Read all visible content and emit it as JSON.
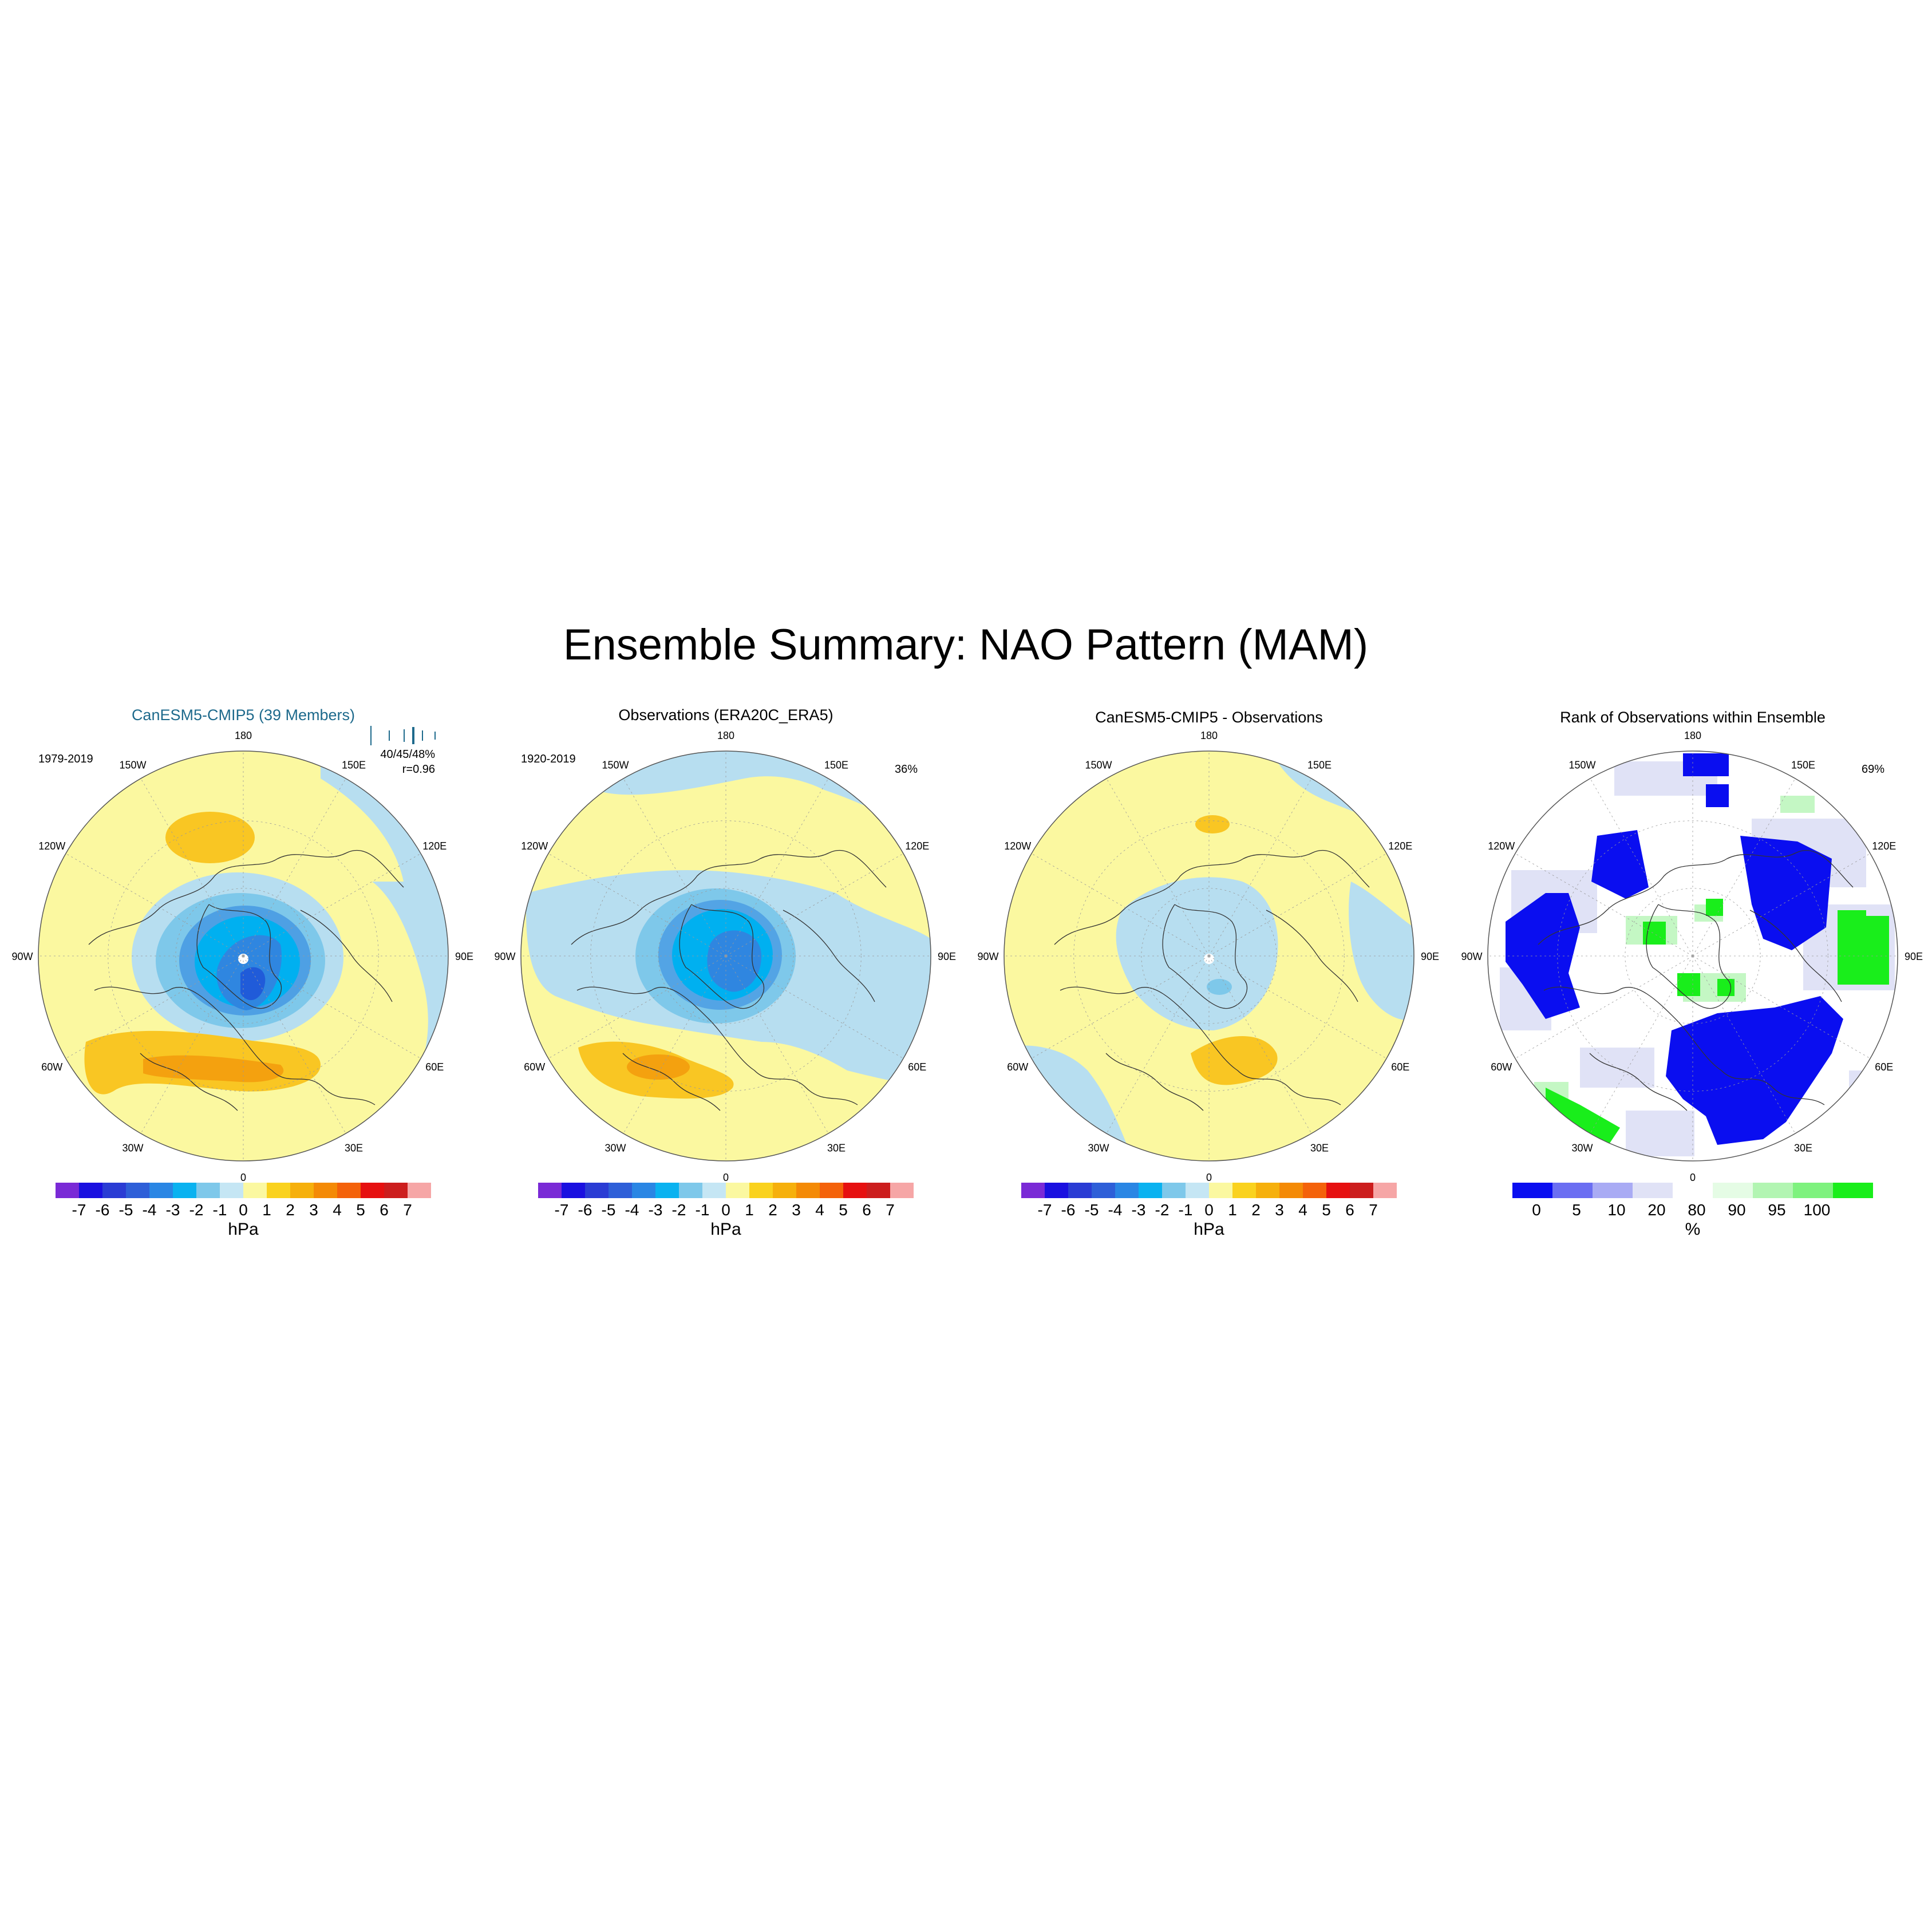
{
  "title": "Ensemble Summary: NAO Pattern (MAM)",
  "colors": {
    "dark_blue": "#1a49d6",
    "blue": "#2f86e0",
    "mid_blue": "#00b0f0",
    "light_blue": "#b7def0",
    "yellow": "#fbf8a0",
    "orange1": "#f9c623",
    "orange2": "#f4a10f",
    "coast": "#333333",
    "grid": "#9a9a9a",
    "model_title": "#1e6a8c",
    "rank_blue": "#0a0ef0",
    "rank_lav": "#e0e2f6",
    "rank_green": "#19ee1b",
    "rank_lgreen": "#c4f7c4"
  },
  "common": {
    "lon_labels": [
      "180",
      "150E",
      "120E",
      "90E",
      "60E",
      "30E",
      "0",
      "30W",
      "60W",
      "90W",
      "120W",
      "150W"
    ]
  },
  "panels": [
    {
      "title": "CanESM5-CMIP5 (39 Members)",
      "period": "1979-2019",
      "stats": "40/45/48%",
      "corr": "r=0.96",
      "pct": ""
    },
    {
      "title": "Observations (ERA20C_ERA5)",
      "period": "1920-2019",
      "stats": "",
      "corr": "",
      "pct": "36%"
    },
    {
      "title": "CanESM5-CMIP5 - Observations",
      "period": "",
      "stats": "",
      "corr": "",
      "pct": ""
    },
    {
      "title": "Rank of Observations within Ensemble",
      "period": "",
      "stats": "",
      "corr": "",
      "pct": "69%"
    }
  ],
  "colorbar_hpa": {
    "unit": "hPa",
    "labels": [
      "-7",
      "-6",
      "-5",
      "-4",
      "-3",
      "-2",
      "-1",
      "0",
      "1",
      "2",
      "3",
      "4",
      "5",
      "6",
      "7"
    ],
    "colors": [
      "#7a2ad6",
      "#1a10e0",
      "#2a3cd4",
      "#2e5fd8",
      "#2a86e4",
      "#0ab2f0",
      "#7ec8ea",
      "#c5e6f4",
      "#fbf8a0",
      "#fad21e",
      "#f6b00c",
      "#f48a06",
      "#f4620a",
      "#e61010",
      "#cc1d1d",
      "#f6a6a6"
    ]
  },
  "colorbar_rank": {
    "unit": "%",
    "labels": [
      "0",
      "5",
      "10",
      "20",
      "80",
      "90",
      "95",
      "100"
    ],
    "colors": [
      "#0a0ef0",
      "#6b6ef2",
      "#a9abf4",
      "#e0e2f6",
      "#ffffff",
      "#e5fce5",
      "#b2f5b2",
      "#7ef27e",
      "#19ee1b"
    ]
  },
  "chart_data": [
    {
      "type": "heatmap",
      "projection": "north-polar-stereographic",
      "units": "hPa",
      "title": "CanESM5-CMIP5 (39 Members)",
      "period": "1979-2019",
      "features": [
        "negative center over Arctic/Greenland (~-4 hPa)",
        "positive band over North Atlantic/Europe (~2-3 hPa)",
        "positive lobe over North Pacific (~2 hPa)"
      ],
      "pattern_correlation": 0.96,
      "variance_explained_pct": [
        40,
        45,
        48
      ]
    },
    {
      "type": "heatmap",
      "projection": "north-polar-stereographic",
      "units": "hPa",
      "title": "Observations (ERA20C_ERA5)",
      "period": "1920-2019",
      "features": [
        "negative center near Iceland/Greenland (~-4 hPa)",
        "positive center over mid-latitude North Atlantic (~2-3 hPa)"
      ],
      "variance_explained_pct": 36
    },
    {
      "type": "heatmap",
      "projection": "north-polar-stereographic",
      "units": "hPa",
      "title": "CanESM5-CMIP5 - Observations",
      "features": [
        "weak negative over Arctic (~-1 hPa)",
        "weak positive over Europe (~1-2 hPa)"
      ]
    },
    {
      "type": "heatmap",
      "projection": "north-polar-stereographic",
      "units": "%",
      "title": "Rank of Observations within Ensemble",
      "pct_area": 69,
      "levels": [
        0,
        5,
        10,
        20,
        80,
        90,
        95,
        100
      ]
    }
  ]
}
